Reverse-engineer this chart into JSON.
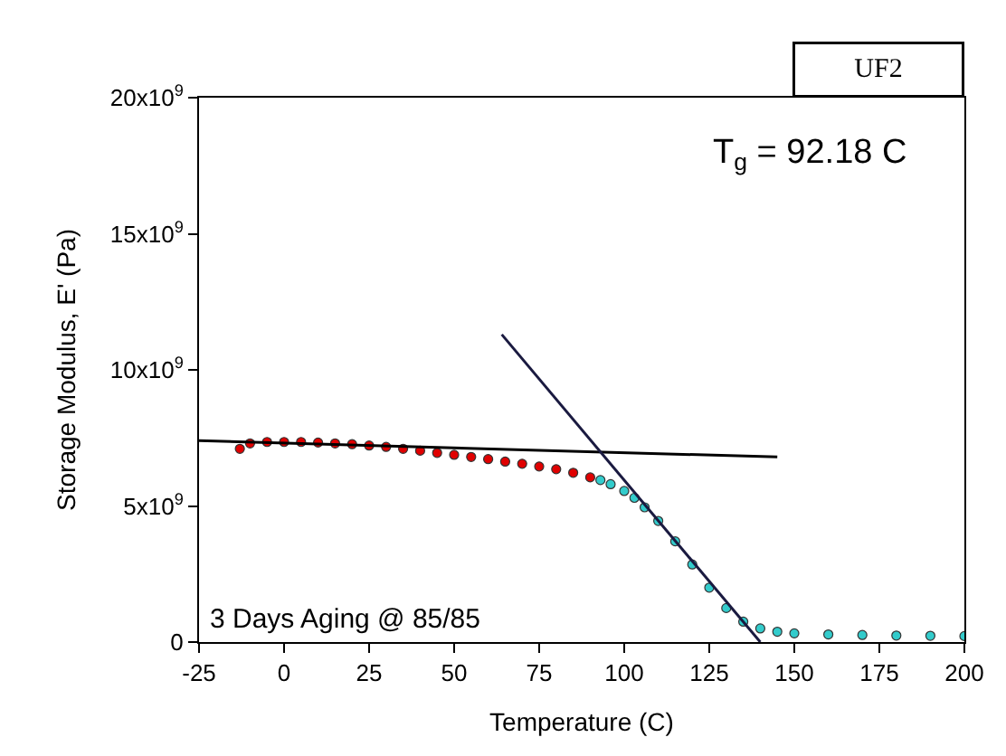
{
  "chart_data": {
    "type": "scatter",
    "xlabel": "Temperature (C)",
    "ylabel": "Storage Modulus, E' (Pa)",
    "xlim": [
      -25,
      200
    ],
    "xticks": [
      -25,
      0,
      25,
      50,
      75,
      100,
      125,
      150,
      175,
      200
    ],
    "ylim": [
      0,
      20000000000
    ],
    "yticks": [
      {
        "value": 0,
        "label": "0"
      },
      {
        "value": 5000000000,
        "label": "5x10$^{9}$"
      },
      {
        "value": 10000000000,
        "label": "10x10$^{9}$"
      },
      {
        "value": 15000000000,
        "label": "15x10$^{9}$"
      },
      {
        "value": 20000000000,
        "label": "20x10$^{9}$"
      }
    ],
    "series": [
      {
        "marker": "circle",
        "color": "#e00000",
        "x": [
          -13,
          -10,
          -5,
          0,
          5,
          10,
          15,
          20,
          25,
          30,
          35,
          40,
          45,
          50,
          55,
          60,
          65,
          70,
          75,
          80,
          85,
          90
        ],
        "values": [
          7100000000,
          7300000000,
          7350000000,
          7350000000,
          7350000000,
          7330000000,
          7300000000,
          7270000000,
          7220000000,
          7170000000,
          7100000000,
          7030000000,
          6950000000,
          6880000000,
          6800000000,
          6720000000,
          6630000000,
          6550000000,
          6450000000,
          6350000000,
          6220000000,
          6050000000
        ]
      },
      {
        "marker": "circle",
        "color": "#33cccc",
        "x": [
          93,
          96,
          100,
          103,
          106,
          110,
          115,
          120,
          125,
          130,
          135,
          140,
          145,
          150,
          160,
          170,
          180,
          190,
          200
        ],
        "values": [
          5950000000,
          5800000000,
          5550000000,
          5300000000,
          4950000000,
          4450000000,
          3700000000,
          2850000000,
          2000000000,
          1250000000,
          750000000,
          500000000,
          380000000,
          320000000,
          280000000,
          260000000,
          240000000,
          230000000,
          220000000
        ]
      },
      {
        "type": "line",
        "color": "#000000",
        "x": [
          -25,
          145
        ],
        "values": [
          7400000000,
          6800000000
        ]
      },
      {
        "type": "line",
        "color": "#1a1a40",
        "x": [
          64,
          140
        ],
        "values": [
          11300000000,
          0
        ]
      }
    ],
    "annotations": [
      "UF2",
      "T$_{g}$ = 92.18 C",
      "3 Days Aging @ 85/85"
    ]
  }
}
